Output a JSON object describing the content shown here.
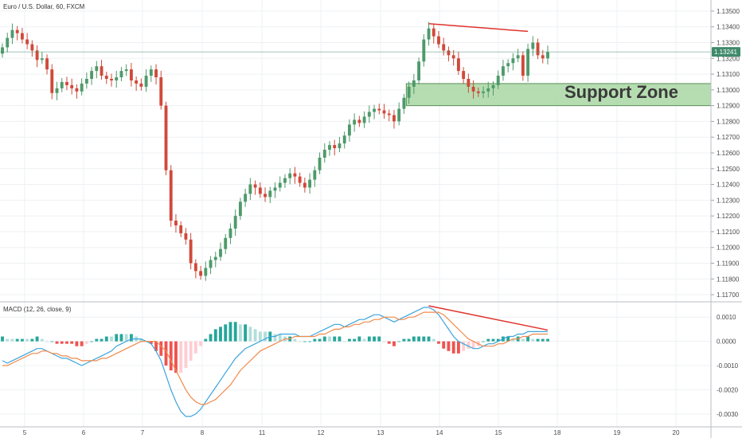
{
  "header": {
    "title": "Euro / U.S. Dollar, 60, FXCM"
  },
  "macd": {
    "label": "MACD (12, 26, close, 9)"
  },
  "annotations": {
    "support_label": "Support Zone",
    "last_price_label": "1.13241"
  },
  "colors": {
    "up": "#4e9a6a",
    "down": "#d0493a",
    "grid": "#eef0f3",
    "support_fill": "#a9d7a3",
    "support_border": "#5b8f55",
    "macd_line": "#3ca4dc",
    "signal_line": "#f08a4b",
    "hist_pos_strong": "#26a69a",
    "hist_pos_weak": "#b2dfdb",
    "hist_neg_strong": "#ef5350",
    "hist_neg_weak": "#ffcdd2",
    "divergence": "#e0322d",
    "last_price_badge": "#3f8a6a"
  },
  "chart_data": [
    {
      "type": "candlestick",
      "title": "Euro / U.S. Dollar, 60, FXCM",
      "y_ticks": [
        "1.13500",
        "1.13400",
        "1.13300",
        "1.13200",
        "1.13100",
        "1.13000",
        "1.12900",
        "1.12800",
        "1.12700",
        "1.12600",
        "1.12500",
        "1.12400",
        "1.12300",
        "1.12200",
        "1.12100",
        "1.12000",
        "1.11900",
        "1.11800",
        "1.11700"
      ],
      "ylim": [
        1.1168,
        1.1353
      ],
      "x_ticks": [
        "5",
        "6",
        "7",
        "8",
        "11",
        "12",
        "13",
        "14",
        "15",
        "18",
        "19",
        "20"
      ],
      "last_price": 1.13241,
      "support_zone": [
        1.129,
        1.1304
      ],
      "closes": [
        1.1327,
        1.1333,
        1.1338,
        1.1336,
        1.1332,
        1.1329,
        1.1325,
        1.1319,
        1.132,
        1.1313,
        1.1298,
        1.1301,
        1.1305,
        1.1303,
        1.1301,
        1.1299,
        1.1304,
        1.1307,
        1.1312,
        1.1315,
        1.1309,
        1.1307,
        1.1306,
        1.1308,
        1.1312,
        1.1313,
        1.1306,
        1.1304,
        1.1302,
        1.1309,
        1.1313,
        1.1308,
        1.129,
        1.1249,
        1.1217,
        1.1214,
        1.1209,
        1.1205,
        1.119,
        1.1185,
        1.1182,
        1.1187,
        1.1192,
        1.1194,
        1.1199,
        1.1206,
        1.1212,
        1.122,
        1.1229,
        1.1234,
        1.124,
        1.1238,
        1.1234,
        1.1232,
        1.1236,
        1.1238,
        1.1241,
        1.1244,
        1.1247,
        1.1245,
        1.1241,
        1.1238,
        1.1243,
        1.1249,
        1.1257,
        1.1262,
        1.1265,
        1.1263,
        1.1266,
        1.1271,
        1.1278,
        1.1281,
        1.1279,
        1.1283,
        1.1286,
        1.1288,
        1.1287,
        1.1285,
        1.1284,
        1.128,
        1.1288,
        1.1295,
        1.1302,
        1.1306,
        1.1318,
        1.1332,
        1.1339,
        1.1334,
        1.1329,
        1.1325,
        1.1322,
        1.132,
        1.1312,
        1.1307,
        1.1302,
        1.1299,
        1.1298,
        1.1299,
        1.1301,
        1.1303,
        1.1309,
        1.1315,
        1.1317,
        1.132,
        1.1322,
        1.1309,
        1.1326,
        1.133,
        1.1322,
        1.132,
        1.1324
      ],
      "annotations": [
        "Support Zone",
        "1.13241"
      ]
    },
    {
      "type": "macd",
      "title": "MACD (12, 26, close, 9)",
      "y_ticks": [
        "0.0010",
        "0.0000",
        "-0.0010",
        "-0.0020",
        "-0.0030"
      ],
      "ylim": [
        -0.0034,
        0.0015
      ],
      "macd": [
        -0.0008,
        -0.0009,
        -0.0008,
        -0.0007,
        -0.0006,
        -0.0005,
        -0.0004,
        -0.0003,
        -0.0003,
        -0.0004,
        -0.0005,
        -0.0006,
        -0.0007,
        -0.0007,
        -0.0008,
        -0.0009,
        -0.001,
        -0.0009,
        -0.0008,
        -0.0007,
        -0.0006,
        -0.0005,
        -0.0004,
        -0.0002,
        -0.0001,
        0.0,
        0.0001,
        0.0001,
        0.0001,
        0.0,
        -0.0001,
        -0.0004,
        -0.0008,
        -0.0014,
        -0.002,
        -0.0025,
        -0.0029,
        -0.0031,
        -0.0031,
        -0.003,
        -0.0028,
        -0.0025,
        -0.0022,
        -0.0019,
        -0.0016,
        -0.0013,
        -0.001,
        -0.0007,
        -0.0005,
        -0.0003,
        -0.0002,
        -0.0001,
        0.0,
        0.0001,
        0.0002,
        0.0002,
        0.0003,
        0.0003,
        0.0003,
        0.0003,
        0.0002,
        0.0002,
        0.0002,
        0.0003,
        0.0004,
        0.0005,
        0.0006,
        0.0007,
        0.0007,
        0.0006,
        0.0007,
        0.0008,
        0.0009,
        0.0009,
        0.001,
        0.0011,
        0.0011,
        0.001,
        0.0009,
        0.0008,
        0.0009,
        0.001,
        0.0011,
        0.0012,
        0.0013,
        0.0014,
        0.0014,
        0.0013,
        0.0011,
        0.0008,
        0.0005,
        0.0002,
        0.0,
        -0.0001,
        -0.0002,
        -0.0003,
        -0.0003,
        -0.0002,
        -0.0001,
        -0.0001,
        0.0,
        0.0001,
        0.0002,
        0.0002,
        0.0003,
        0.0003,
        0.0004,
        0.0004,
        0.0004,
        0.0004,
        0.0004
      ],
      "signal": [
        -0.001,
        -0.001,
        -0.0009,
        -0.0008,
        -0.0007,
        -0.0006,
        -0.0005,
        -0.0005,
        -0.0004,
        -0.0004,
        -0.0005,
        -0.0005,
        -0.0006,
        -0.0006,
        -0.0007,
        -0.0007,
        -0.0008,
        -0.0008,
        -0.0008,
        -0.0008,
        -0.0007,
        -0.0007,
        -0.0006,
        -0.0005,
        -0.0004,
        -0.0003,
        -0.0002,
        -0.0001,
        0.0,
        0.0,
        0.0,
        0.0,
        -0.0002,
        -0.0004,
        -0.0008,
        -0.0012,
        -0.0016,
        -0.002,
        -0.0023,
        -0.0025,
        -0.0026,
        -0.0026,
        -0.0025,
        -0.0024,
        -0.0022,
        -0.002,
        -0.0018,
        -0.0015,
        -0.0012,
        -0.001,
        -0.0008,
        -0.0006,
        -0.0004,
        -0.0003,
        -0.0002,
        -0.0001,
        0.0,
        0.0001,
        0.0001,
        0.0002,
        0.0002,
        0.0002,
        0.0002,
        0.0002,
        0.0003,
        0.0003,
        0.0004,
        0.0005,
        0.0005,
        0.0006,
        0.0006,
        0.0007,
        0.0007,
        0.0008,
        0.0008,
        0.0009,
        0.0009,
        0.001,
        0.001,
        0.001,
        0.0009,
        0.0009,
        0.001,
        0.001,
        0.0011,
        0.0012,
        0.0012,
        0.0012,
        0.0012,
        0.0011,
        0.0009,
        0.0007,
        0.0005,
        0.0003,
        0.0001,
        0.0,
        -0.0001,
        -0.0002,
        -0.0002,
        -0.0002,
        -0.0001,
        -0.0001,
        0.0,
        0.0001,
        0.0001,
        0.0002,
        0.0002,
        0.0003,
        0.0003,
        0.0003,
        0.0003
      ]
    }
  ]
}
